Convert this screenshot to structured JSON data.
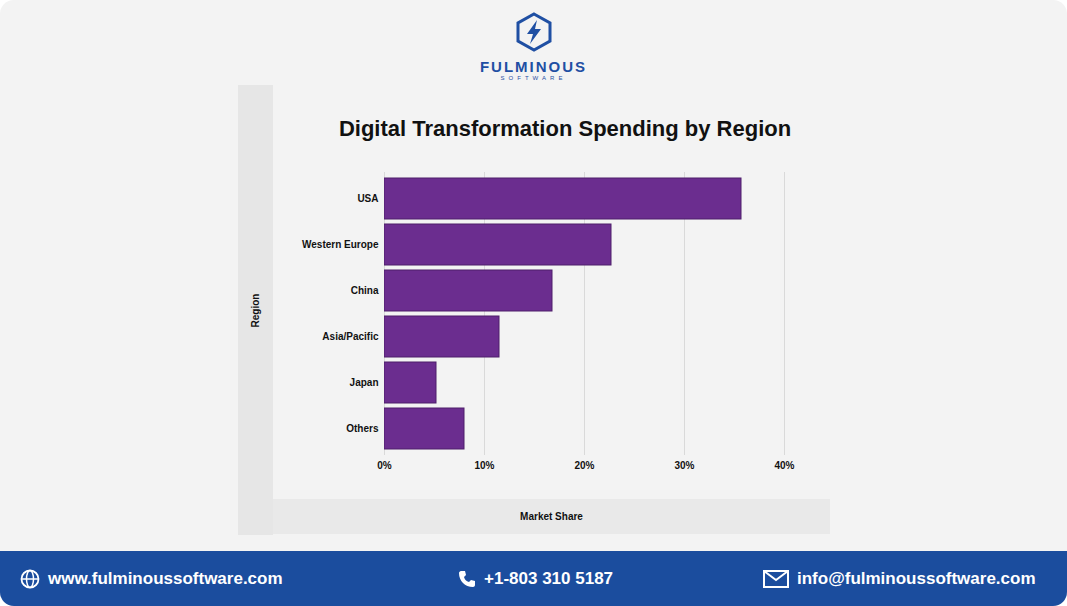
{
  "header": {
    "logo_name": "FULMINOUS",
    "logo_tagline": "SOFTWARE"
  },
  "chart_data": {
    "type": "bar",
    "orientation": "horizontal",
    "title": "Digital Transformation Spending by Region",
    "x_label": "Market Share",
    "y_label": "Region",
    "categories": [
      "USA",
      "Western Europe",
      "China",
      "Asia/Pacific",
      "Japan",
      "Others"
    ],
    "values": [
      35.7,
      22.7,
      16.8,
      11.5,
      5.2,
      8.0
    ],
    "color": "#6b2d8f",
    "xlim": [
      0,
      40
    ],
    "xticks": [
      {
        "value": 0,
        "label": "0%"
      },
      {
        "value": 10,
        "label": "10%"
      },
      {
        "value": 20,
        "label": "20%"
      },
      {
        "value": 30,
        "label": "30%"
      },
      {
        "value": 40,
        "label": "40%"
      }
    ],
    "grid": true
  },
  "footer": {
    "website": "www.fulminoussoftware.com",
    "phone": "+1-803 310 5187",
    "email": "info@fulminoussoftware.com"
  }
}
